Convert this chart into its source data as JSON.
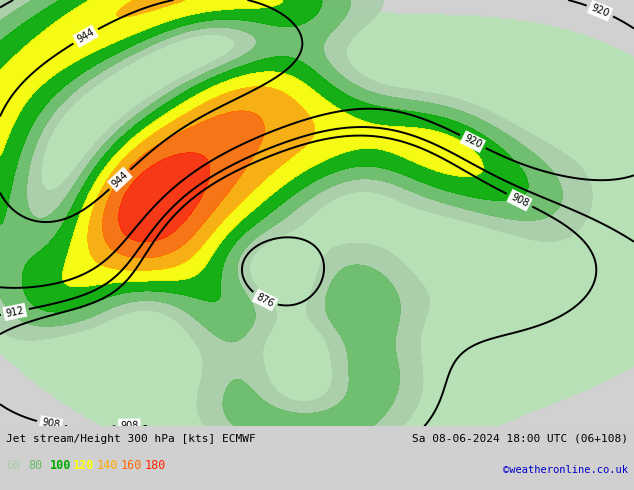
{
  "title_left": "Jet stream/Height 300 hPa [kts] ECMWF",
  "title_right": "Sa 08-06-2024 18:00 UTC (06+108)",
  "copyright": "©weatheronline.co.uk",
  "legend_values": [
    60,
    80,
    100,
    120,
    140,
    160,
    180
  ],
  "legend_colors": [
    "#aaccaa",
    "#66bb66",
    "#00aa00",
    "#ffff00",
    "#ffaa00",
    "#ff6600",
    "#ff2200"
  ],
  "bg_color": "#d0d0d0",
  "contour_color": "#000000",
  "fig_width": 6.34,
  "fig_height": 4.9,
  "dpi": 100
}
